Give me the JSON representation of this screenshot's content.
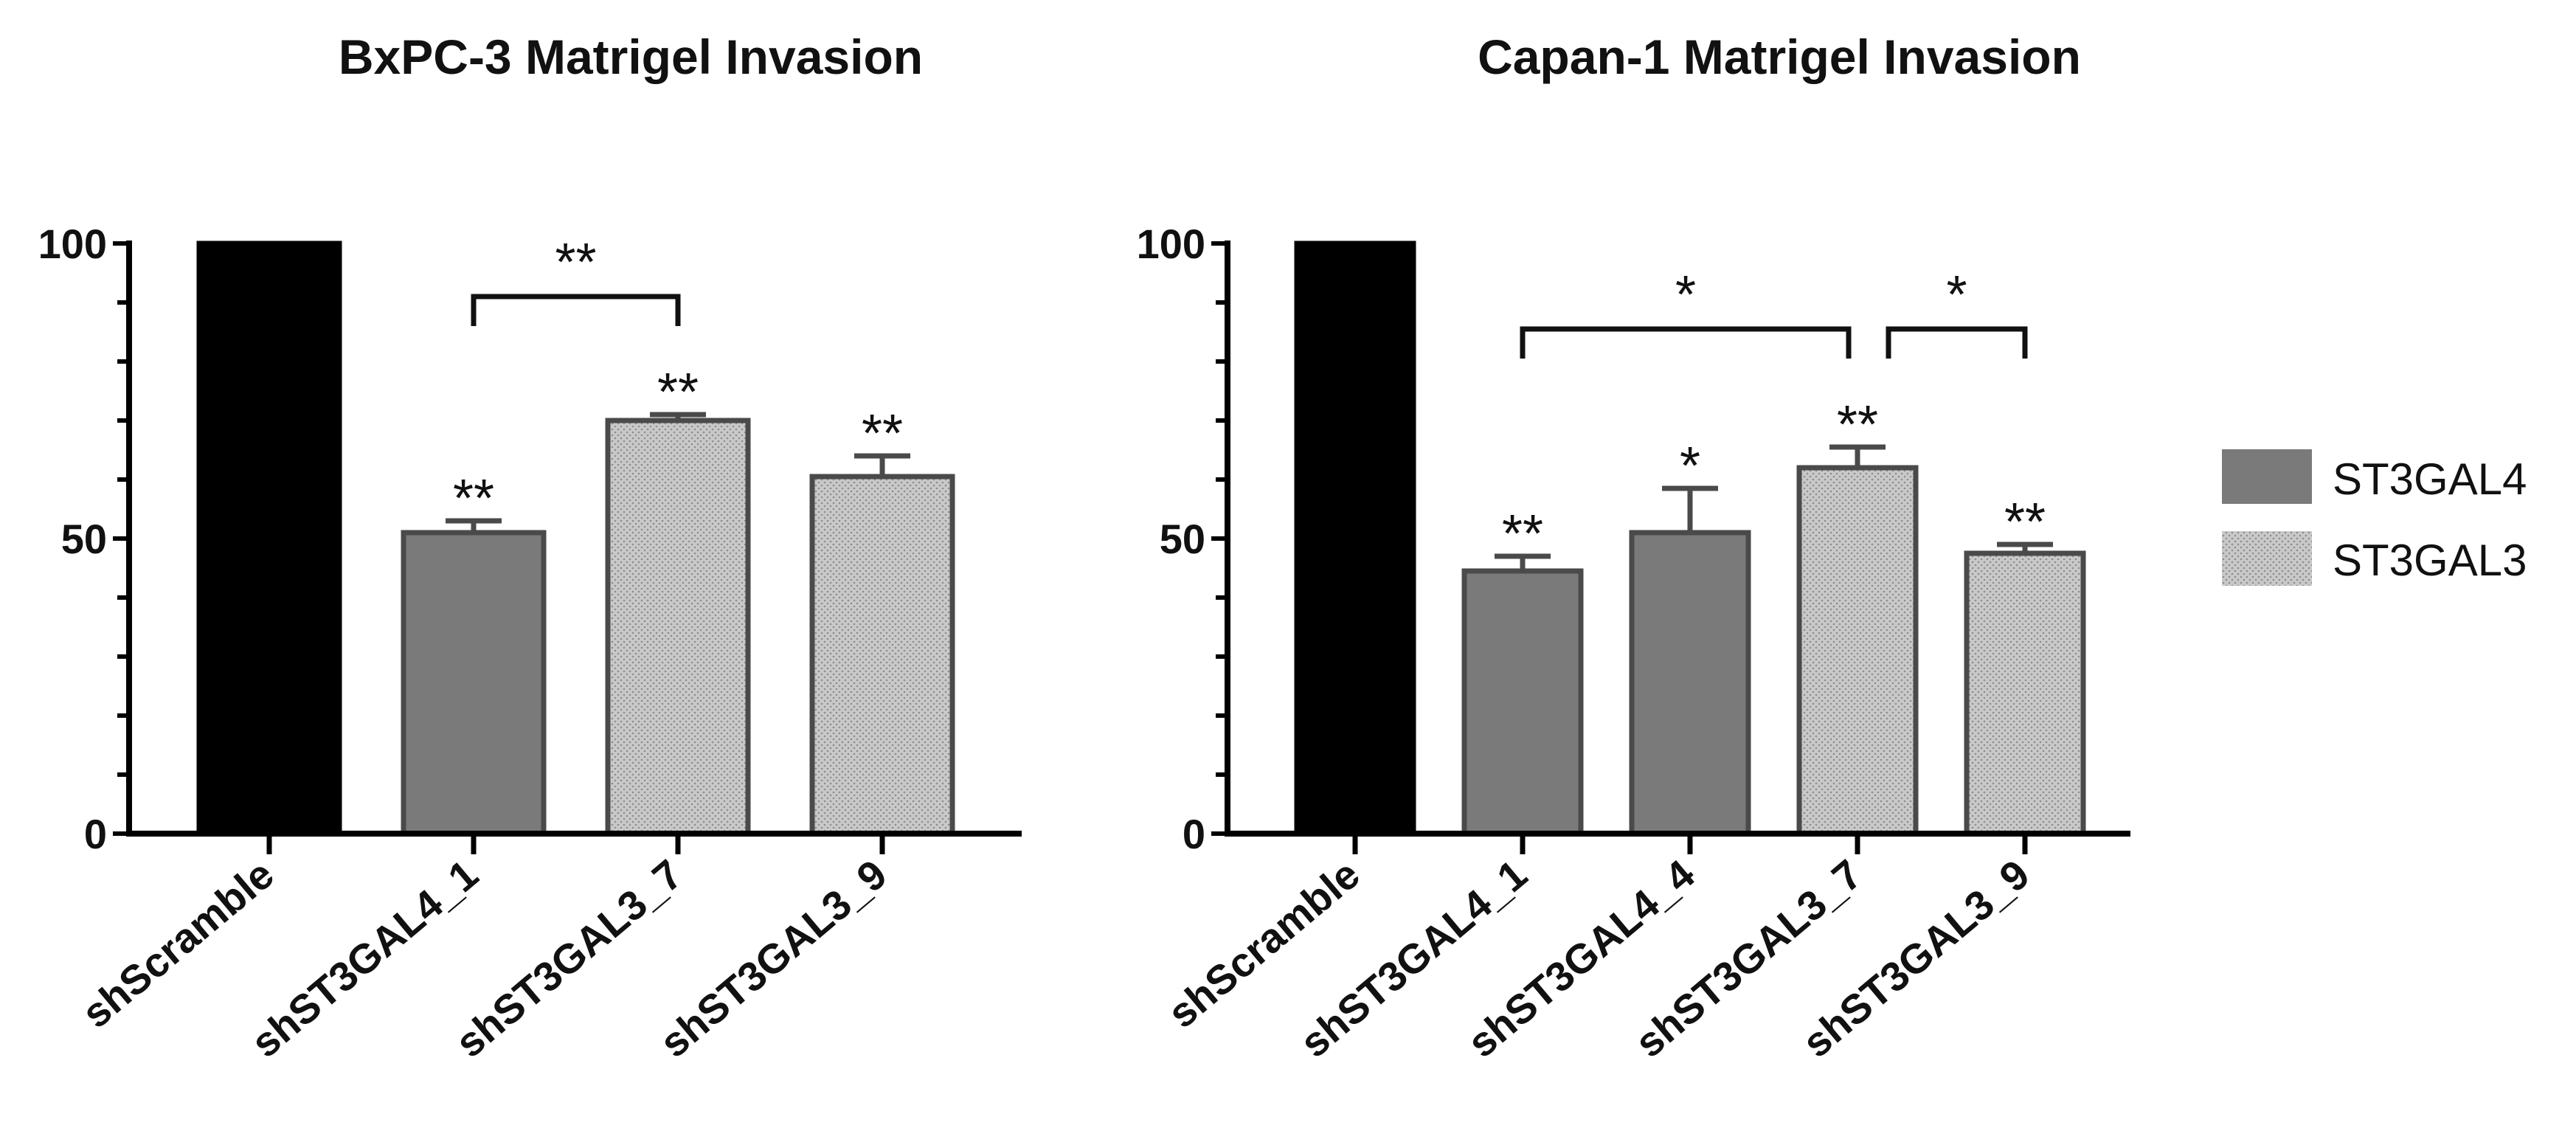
{
  "chart_data": [
    {
      "type": "bar",
      "title": "BxPC-3 Matrigel Invasion",
      "xlabel": "",
      "ylabel": "",
      "ylim": [
        0,
        100
      ],
      "yticks": [
        "0",
        "50",
        "100"
      ],
      "categories": [
        "shScramble",
        "shST3GAL4_1",
        "shST3GAL3_7",
        "shST3GAL3_9"
      ],
      "values": [
        100,
        51,
        70,
        60.5
      ],
      "errors": [
        0,
        2,
        1,
        3.5
      ],
      "groups": [
        "control",
        "ST3GAL4",
        "ST3GAL3",
        "ST3GAL3"
      ],
      "bar_significance": [
        "",
        "**",
        "**",
        "**"
      ],
      "brackets": [
        {
          "from": 1,
          "to": 2,
          "label": "**"
        }
      ]
    },
    {
      "type": "bar",
      "title": "Capan-1 Matrigel Invasion",
      "xlabel": "",
      "ylabel": "",
      "ylim": [
        0,
        100
      ],
      "yticks": [
        "0",
        "50",
        "100"
      ],
      "categories": [
        "shScramble",
        "shST3GAL4_1",
        "shST3GAL4_4",
        "shST3GAL3_7",
        "shST3GAL3_9"
      ],
      "values": [
        100,
        44.5,
        51,
        62,
        47.5
      ],
      "errors": [
        0,
        2.5,
        7.5,
        3.5,
        1.5
      ],
      "groups": [
        "control",
        "ST3GAL4",
        "ST3GAL4",
        "ST3GAL3",
        "ST3GAL3"
      ],
      "bar_significance": [
        "",
        "**",
        "*",
        "**",
        "**"
      ],
      "brackets": [
        {
          "from": 1,
          "to": 3,
          "label": "*"
        },
        {
          "from": 3,
          "to": 4,
          "label": "*"
        }
      ]
    }
  ],
  "legend": {
    "position": "right",
    "items": [
      {
        "label": "ST3GAL4",
        "group": "ST3GAL4"
      },
      {
        "label": "ST3GAL3",
        "group": "ST3GAL3"
      }
    ]
  },
  "colors": {
    "control": "#000000",
    "ST3GAL4": "#7a7a7a",
    "ST3GAL3": "#c8c8c8",
    "stroke": "#4a4a4a",
    "axis": "#000000"
  }
}
